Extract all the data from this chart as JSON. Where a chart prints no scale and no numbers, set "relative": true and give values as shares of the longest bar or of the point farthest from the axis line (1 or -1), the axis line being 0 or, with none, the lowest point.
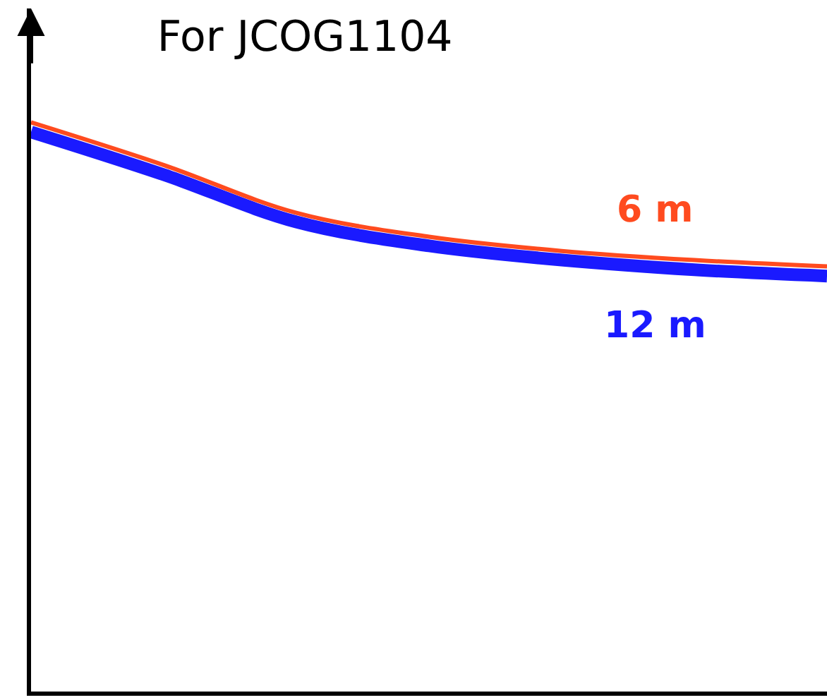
{
  "chart_data": {
    "type": "line",
    "title": "For JCOG1104",
    "relative": true,
    "categories": [
      null,
      null,
      null,
      null,
      null,
      null,
      null
    ],
    "series": [
      {
        "name": "6 m",
        "color": "#ff4b1f",
        "values": [
          1,
          0.925,
          0.841,
          0.799,
          0.774,
          0.758,
          0.747
        ]
      },
      {
        "name": "12 m",
        "color": "#1a1aff",
        "values": [
          0.983,
          0.908,
          0.825,
          0.783,
          0.758,
          0.741,
          0.73
        ]
      }
    ],
    "legend": false,
    "marker": "none",
    "line_style": "solid"
  }
}
